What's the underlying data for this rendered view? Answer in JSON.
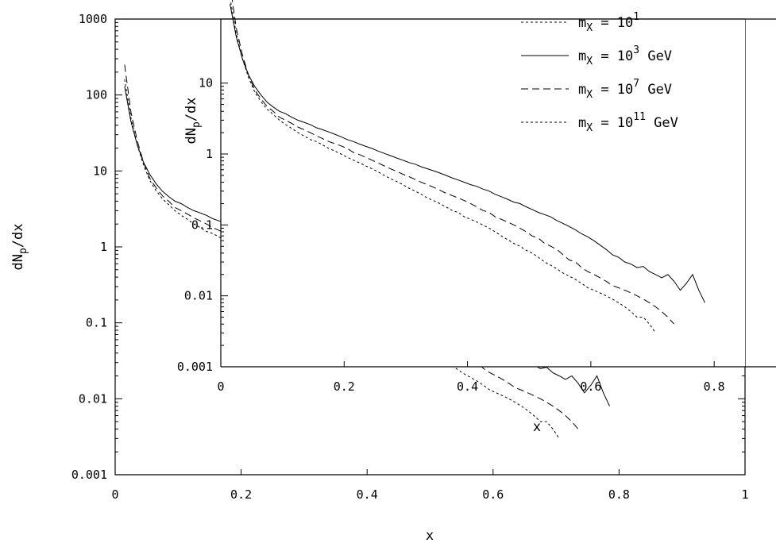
{
  "chart_data": [
    {
      "id": "main",
      "type": "line",
      "title": "",
      "xlabel": "x",
      "ylabel": "dN_p/dx",
      "xlim": [
        0,
        1
      ],
      "ylim": [
        0.001,
        1000
      ],
      "yscale": "log",
      "grid": false,
      "xticks": [
        {
          "value": 0,
          "label": "0"
        },
        {
          "value": 0.2,
          "label": "0.2"
        },
        {
          "value": 0.4,
          "label": "0.4"
        },
        {
          "value": 0.6,
          "label": "0.6"
        },
        {
          "value": 0.8,
          "label": "0.8"
        },
        {
          "value": 1,
          "label": "1"
        }
      ],
      "yticks": [
        {
          "value": 0.001,
          "label": "0.001"
        },
        {
          "value": 0.01,
          "label": "0.01"
        },
        {
          "value": 0.1,
          "label": "0.1"
        },
        {
          "value": 1,
          "label": "1"
        },
        {
          "value": 10,
          "label": "10"
        },
        {
          "value": 100,
          "label": "100"
        },
        {
          "value": 1000,
          "label": "1000"
        }
      ],
      "series": [
        {
          "dash": "none",
          "x": [
            0.015,
            0.025,
            0.035,
            0.045,
            0.055,
            0.065,
            0.075,
            0.085,
            0.095,
            0.105,
            0.115,
            0.125,
            0.135,
            0.145,
            0.155,
            0.165,
            0.175,
            0.185,
            0.195,
            0.205,
            0.215,
            0.225,
            0.235,
            0.245,
            0.255,
            0.265,
            0.275,
            0.285,
            0.295,
            0.305,
            0.315,
            0.325,
            0.335,
            0.345,
            0.355,
            0.365,
            0.375,
            0.385,
            0.395,
            0.405,
            0.415,
            0.425,
            0.435,
            0.445,
            0.455,
            0.465,
            0.475,
            0.485,
            0.495,
            0.505,
            0.515,
            0.525,
            0.535,
            0.545,
            0.555,
            0.565,
            0.575,
            0.585,
            0.595,
            0.605,
            0.615,
            0.625,
            0.635,
            0.645,
            0.655,
            0.665,
            0.675,
            0.685,
            0.695,
            0.705,
            0.715,
            0.725,
            0.735,
            0.745,
            0.755,
            0.765,
            0.775,
            0.785
          ],
          "y": [
            130,
            45,
            22,
            13,
            9,
            6.8,
            5.4,
            4.6,
            4,
            3.7,
            3.3,
            3,
            2.8,
            2.6,
            2.35,
            2.2,
            2.05,
            1.9,
            1.75,
            1.6,
            1.5,
            1.38,
            1.28,
            1.2,
            1.1,
            1.02,
            0.95,
            0.88,
            0.82,
            0.76,
            0.72,
            0.66,
            0.62,
            0.58,
            0.54,
            0.5,
            0.46,
            0.43,
            0.4,
            0.37,
            0.35,
            0.32,
            0.3,
            0.27,
            0.25,
            0.23,
            0.21,
            0.2,
            0.18,
            0.165,
            0.15,
            0.14,
            0.13,
            0.115,
            0.105,
            0.095,
            0.085,
            0.075,
            0.068,
            0.06,
            0.052,
            0.045,
            0.038,
            0.035,
            0.03,
            0.028,
            0.025,
            0.026,
            0.022,
            0.02,
            0.018,
            0.02,
            0.016,
            0.012,
            0.015,
            0.02,
            0.012,
            0.008
          ]
        },
        {
          "dash": "9,5",
          "x": [
            0.015,
            0.025,
            0.035,
            0.045,
            0.055,
            0.065,
            0.075,
            0.085,
            0.095,
            0.105,
            0.115,
            0.125,
            0.135,
            0.145,
            0.155,
            0.165,
            0.175,
            0.185,
            0.195,
            0.205,
            0.215,
            0.225,
            0.235,
            0.245,
            0.255,
            0.265,
            0.275,
            0.285,
            0.295,
            0.305,
            0.315,
            0.325,
            0.335,
            0.345,
            0.355,
            0.365,
            0.375,
            0.385,
            0.395,
            0.405,
            0.415,
            0.425,
            0.435,
            0.445,
            0.455,
            0.465,
            0.475,
            0.485,
            0.495,
            0.505,
            0.515,
            0.525,
            0.535,
            0.545,
            0.555,
            0.565,
            0.575,
            0.585,
            0.595,
            0.605,
            0.615,
            0.625,
            0.635,
            0.645,
            0.655,
            0.665,
            0.675,
            0.685,
            0.695,
            0.705,
            0.715,
            0.725,
            0.735
          ],
          "y": [
            250,
            60,
            25,
            13,
            8,
            6,
            4.7,
            4,
            3.3,
            3,
            2.7,
            2.4,
            2.2,
            2,
            1.8,
            1.65,
            1.5,
            1.4,
            1.3,
            1.2,
            1.05,
            0.98,
            0.9,
            0.82,
            0.75,
            0.68,
            0.62,
            0.57,
            0.52,
            0.48,
            0.44,
            0.4,
            0.37,
            0.34,
            0.31,
            0.28,
            0.26,
            0.24,
            0.22,
            0.2,
            0.18,
            0.16,
            0.15,
            0.13,
            0.12,
            0.11,
            0.1,
            0.09,
            0.08,
            0.07,
            0.065,
            0.055,
            0.05,
            0.045,
            0.038,
            0.032,
            0.03,
            0.025,
            0.022,
            0.02,
            0.018,
            0.016,
            0.014,
            0.013,
            0.012,
            0.011,
            0.01,
            0.009,
            0.008,
            0.007,
            0.006,
            0.005,
            0.004
          ]
        },
        {
          "dash": "3,3",
          "x": [
            0.015,
            0.025,
            0.035,
            0.045,
            0.055,
            0.065,
            0.075,
            0.085,
            0.095,
            0.105,
            0.115,
            0.125,
            0.135,
            0.145,
            0.155,
            0.165,
            0.175,
            0.185,
            0.195,
            0.205,
            0.215,
            0.225,
            0.235,
            0.245,
            0.255,
            0.265,
            0.275,
            0.285,
            0.295,
            0.305,
            0.315,
            0.325,
            0.335,
            0.345,
            0.355,
            0.365,
            0.375,
            0.385,
            0.395,
            0.405,
            0.415,
            0.425,
            0.435,
            0.445,
            0.455,
            0.465,
            0.475,
            0.485,
            0.495,
            0.505,
            0.515,
            0.525,
            0.535,
            0.545,
            0.555,
            0.565,
            0.575,
            0.585,
            0.595,
            0.605,
            0.615,
            0.625,
            0.635,
            0.645,
            0.655,
            0.665,
            0.675,
            0.685,
            0.695,
            0.705
          ],
          "y": [
            160,
            50,
            22,
            12,
            7.5,
            5.5,
            4.3,
            3.6,
            3,
            2.6,
            2.3,
            2,
            1.8,
            1.6,
            1.5,
            1.35,
            1.2,
            1.1,
            1,
            0.9,
            0.82,
            0.75,
            0.68,
            0.62,
            0.56,
            0.5,
            0.45,
            0.41,
            0.37,
            0.33,
            0.3,
            0.27,
            0.24,
            0.22,
            0.2,
            0.18,
            0.16,
            0.15,
            0.13,
            0.12,
            0.11,
            0.1,
            0.09,
            0.08,
            0.07,
            0.062,
            0.055,
            0.05,
            0.044,
            0.04,
            0.035,
            0.03,
            0.027,
            0.024,
            0.021,
            0.019,
            0.017,
            0.015,
            0.013,
            0.012,
            0.011,
            0.01,
            0.009,
            0.008,
            0.007,
            0.006,
            0.005,
            0.005,
            0.004,
            0.003
          ]
        }
      ]
    },
    {
      "id": "inset",
      "type": "line",
      "title": "",
      "xlabel": "x",
      "ylabel": "dN_p/dx",
      "xlim": [
        0,
        0.85
      ],
      "ylim": [
        0.001,
        80
      ],
      "yscale": "log",
      "grid": false,
      "xticks": [
        {
          "value": 0,
          "label": "0"
        },
        {
          "value": 0.2,
          "label": "0.2"
        },
        {
          "value": 0.4,
          "label": "0.4"
        },
        {
          "value": 0.6,
          "label": "0.6"
        },
        {
          "value": 0.8,
          "label": "0.8"
        }
      ],
      "yticks": [
        {
          "value": 0.001,
          "label": "0.001"
        },
        {
          "value": 0.01,
          "label": "0.01"
        },
        {
          "value": 0.1,
          "label": "0.1"
        },
        {
          "value": 1,
          "label": "1"
        },
        {
          "value": 10,
          "label": "10"
        }
      ],
      "legend_position": "top-right",
      "series": [
        {
          "name_base": "m_X = 10",
          "name_exp": "1",
          "name_unit": "",
          "legend_only": true,
          "dash": "3,3"
        },
        {
          "name_base": "m_X = 10",
          "name_exp": "3",
          "name_unit": "GeV",
          "dash": "none",
          "x": [
            0.015,
            0.025,
            0.035,
            0.045,
            0.055,
            0.065,
            0.075,
            0.085,
            0.095,
            0.105,
            0.115,
            0.125,
            0.135,
            0.145,
            0.155,
            0.165,
            0.175,
            0.185,
            0.195,
            0.205,
            0.215,
            0.225,
            0.235,
            0.245,
            0.255,
            0.265,
            0.275,
            0.285,
            0.295,
            0.305,
            0.315,
            0.325,
            0.335,
            0.345,
            0.355,
            0.365,
            0.375,
            0.385,
            0.395,
            0.405,
            0.415,
            0.425,
            0.435,
            0.445,
            0.455,
            0.465,
            0.475,
            0.485,
            0.495,
            0.505,
            0.515,
            0.525,
            0.535,
            0.545,
            0.555,
            0.565,
            0.575,
            0.585,
            0.595,
            0.605,
            0.615,
            0.625,
            0.635,
            0.645,
            0.655,
            0.665,
            0.675,
            0.685,
            0.695,
            0.705,
            0.715,
            0.725,
            0.735,
            0.745,
            0.755,
            0.765,
            0.775,
            0.785
          ],
          "y": [
            130,
            45,
            22,
            13,
            9,
            6.8,
            5.4,
            4.6,
            4,
            3.7,
            3.3,
            3,
            2.8,
            2.6,
            2.35,
            2.2,
            2.05,
            1.9,
            1.75,
            1.6,
            1.5,
            1.38,
            1.28,
            1.2,
            1.1,
            1.02,
            0.95,
            0.88,
            0.82,
            0.76,
            0.72,
            0.66,
            0.62,
            0.58,
            0.54,
            0.5,
            0.46,
            0.43,
            0.4,
            0.37,
            0.35,
            0.32,
            0.3,
            0.27,
            0.25,
            0.23,
            0.21,
            0.2,
            0.18,
            0.165,
            0.15,
            0.14,
            0.13,
            0.115,
            0.105,
            0.095,
            0.085,
            0.075,
            0.068,
            0.06,
            0.052,
            0.045,
            0.038,
            0.035,
            0.03,
            0.028,
            0.025,
            0.026,
            0.022,
            0.02,
            0.018,
            0.02,
            0.016,
            0.012,
            0.015,
            0.02,
            0.012,
            0.008
          ]
        },
        {
          "name_base": "m_X = 10",
          "name_exp": "7",
          "name_unit": "GeV",
          "dash": "9,5",
          "x": [
            0.015,
            0.025,
            0.035,
            0.045,
            0.055,
            0.065,
            0.075,
            0.085,
            0.095,
            0.105,
            0.115,
            0.125,
            0.135,
            0.145,
            0.155,
            0.165,
            0.175,
            0.185,
            0.195,
            0.205,
            0.215,
            0.225,
            0.235,
            0.245,
            0.255,
            0.265,
            0.275,
            0.285,
            0.295,
            0.305,
            0.315,
            0.325,
            0.335,
            0.345,
            0.355,
            0.365,
            0.375,
            0.385,
            0.395,
            0.405,
            0.415,
            0.425,
            0.435,
            0.445,
            0.455,
            0.465,
            0.475,
            0.485,
            0.495,
            0.505,
            0.515,
            0.525,
            0.535,
            0.545,
            0.555,
            0.565,
            0.575,
            0.585,
            0.595,
            0.605,
            0.615,
            0.625,
            0.635,
            0.645,
            0.655,
            0.665,
            0.675,
            0.685,
            0.695,
            0.705,
            0.715,
            0.725,
            0.735
          ],
          "y": [
            250,
            60,
            25,
            13,
            8,
            6,
            4.7,
            4,
            3.3,
            3,
            2.7,
            2.4,
            2.2,
            2,
            1.8,
            1.65,
            1.5,
            1.4,
            1.3,
            1.2,
            1.05,
            0.98,
            0.9,
            0.82,
            0.75,
            0.68,
            0.62,
            0.57,
            0.52,
            0.48,
            0.44,
            0.4,
            0.37,
            0.34,
            0.31,
            0.28,
            0.26,
            0.24,
            0.22,
            0.2,
            0.18,
            0.16,
            0.15,
            0.13,
            0.12,
            0.11,
            0.1,
            0.09,
            0.08,
            0.07,
            0.065,
            0.055,
            0.05,
            0.045,
            0.038,
            0.032,
            0.03,
            0.025,
            0.022,
            0.02,
            0.018,
            0.016,
            0.014,
            0.013,
            0.012,
            0.011,
            0.01,
            0.009,
            0.008,
            0.007,
            0.006,
            0.005,
            0.004
          ]
        },
        {
          "name_base": "m_X = 10",
          "name_exp": "11",
          "name_unit": "GeV",
          "dash": "3,3",
          "x": [
            0.015,
            0.025,
            0.035,
            0.045,
            0.055,
            0.065,
            0.075,
            0.085,
            0.095,
            0.105,
            0.115,
            0.125,
            0.135,
            0.145,
            0.155,
            0.165,
            0.175,
            0.185,
            0.195,
            0.205,
            0.215,
            0.225,
            0.235,
            0.245,
            0.255,
            0.265,
            0.275,
            0.285,
            0.295,
            0.305,
            0.315,
            0.325,
            0.335,
            0.345,
            0.355,
            0.365,
            0.375,
            0.385,
            0.395,
            0.405,
            0.415,
            0.425,
            0.435,
            0.445,
            0.455,
            0.465,
            0.475,
            0.485,
            0.495,
            0.505,
            0.515,
            0.525,
            0.535,
            0.545,
            0.555,
            0.565,
            0.575,
            0.585,
            0.595,
            0.605,
            0.615,
            0.625,
            0.635,
            0.645,
            0.655,
            0.665,
            0.675,
            0.685,
            0.695,
            0.705
          ],
          "y": [
            160,
            50,
            22,
            12,
            7.5,
            5.5,
            4.3,
            3.6,
            3,
            2.6,
            2.3,
            2,
            1.8,
            1.6,
            1.5,
            1.35,
            1.2,
            1.1,
            1,
            0.9,
            0.82,
            0.75,
            0.68,
            0.62,
            0.56,
            0.5,
            0.45,
            0.41,
            0.37,
            0.33,
            0.3,
            0.27,
            0.24,
            0.22,
            0.2,
            0.18,
            0.16,
            0.15,
            0.13,
            0.12,
            0.11,
            0.1,
            0.09,
            0.08,
            0.07,
            0.062,
            0.055,
            0.05,
            0.044,
            0.04,
            0.035,
            0.03,
            0.027,
            0.024,
            0.021,
            0.019,
            0.017,
            0.015,
            0.013,
            0.012,
            0.011,
            0.01,
            0.009,
            0.008,
            0.007,
            0.006,
            0.005,
            0.005,
            0.004,
            0.003
          ]
        }
      ]
    }
  ]
}
